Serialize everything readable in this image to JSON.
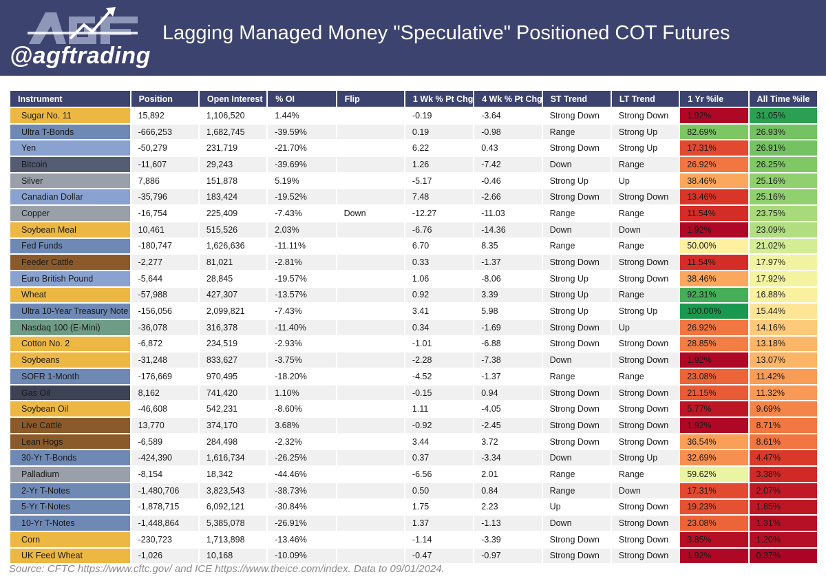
{
  "header": {
    "title": "Lagging Managed Money \"Speculative\" Positioned COT Futures",
    "handle": "@agftrading",
    "logo_letters": "AGF"
  },
  "source": "Source: CFTC https://www.cftc.gov/ and ICE https://www.theice.com/index.  Data to 09/01/2024.",
  "colors": {
    "header_bg": "#3d436f",
    "softs": "#ecb843",
    "rates": "#6f89b5",
    "fx": "#8aa2cf",
    "crypto": "#545d73",
    "metals": "#9aa0a9",
    "grains": "#ecb843",
    "livestock": "#8b5a2b",
    "equity": "#6f9c87",
    "energy": "#3e4255"
  },
  "chart_data": {
    "type": "table",
    "columns": [
      "Instrument",
      "Position",
      "Open Interest",
      "% OI",
      "Flip",
      "1 Wk % Pt Chg",
      "4 Wk % Pt Chg",
      "ST Trend",
      "LT Trend",
      "1 Yr %ile",
      "All Time %ile"
    ],
    "rows": [
      {
        "instrument": "Sugar No. 11",
        "color": "#ecb843",
        "position": "15,892",
        "open_interest": "1,106,520",
        "pct_oi": "1.44%",
        "flip": "",
        "wk1": "-0.19",
        "wk4": "-3.64",
        "st": "Strong Down",
        "lt": "Strong Down",
        "yr1": "1.92%",
        "alltime": "31.05%",
        "yr1_value": 1.92,
        "alltime_value": 31.05
      },
      {
        "instrument": "Ultra T-Bonds",
        "color": "#6f89b5",
        "position": "-666,253",
        "open_interest": "1,682,745",
        "pct_oi": "-39.59%",
        "flip": "",
        "wk1": "0.19",
        "wk4": "-0.98",
        "st": "Range",
        "lt": "Strong Up",
        "yr1": "82.69%",
        "alltime": "26.93%",
        "yr1_value": 82.69,
        "alltime_value": 26.93
      },
      {
        "instrument": "Yen",
        "color": "#8aa2cf",
        "position": "-50,279",
        "open_interest": "231,719",
        "pct_oi": "-21.70%",
        "flip": "",
        "wk1": "6.22",
        "wk4": "0.43",
        "st": "Strong Down",
        "lt": "Strong Up",
        "yr1": "17.31%",
        "alltime": "26.91%",
        "yr1_value": 17.31,
        "alltime_value": 26.91
      },
      {
        "instrument": "Bitcoin",
        "color": "#545d73",
        "position": "-11,607",
        "open_interest": "29,243",
        "pct_oi": "-39.69%",
        "flip": "",
        "wk1": "1.26",
        "wk4": "-7.42",
        "st": "Down",
        "lt": "Range",
        "yr1": "26.92%",
        "alltime": "26.25%",
        "yr1_value": 26.92,
        "alltime_value": 26.25
      },
      {
        "instrument": "Silver",
        "color": "#9aa0a9",
        "position": "7,886",
        "open_interest": "151,878",
        "pct_oi": "5.19%",
        "flip": "",
        "wk1": "-5.17",
        "wk4": "-0.46",
        "st": "Strong Up",
        "lt": "Up",
        "yr1": "38.46%",
        "alltime": "25.16%",
        "yr1_value": 38.46,
        "alltime_value": 25.16
      },
      {
        "instrument": "Canadian Dollar",
        "color": "#8aa2cf",
        "position": "-35,796",
        "open_interest": "183,424",
        "pct_oi": "-19.52%",
        "flip": "",
        "wk1": "7.48",
        "wk4": "-2.66",
        "st": "Strong Down",
        "lt": "Strong Down",
        "yr1": "13.46%",
        "alltime": "25.16%",
        "yr1_value": 13.46,
        "alltime_value": 25.16
      },
      {
        "instrument": "Copper",
        "color": "#9aa0a9",
        "position": "-16,754",
        "open_interest": "225,409",
        "pct_oi": "-7.43%",
        "flip": "Down",
        "wk1": "-12.27",
        "wk4": "-11.03",
        "st": "Range",
        "lt": "Range",
        "yr1": "11.54%",
        "alltime": "23.75%",
        "yr1_value": 11.54,
        "alltime_value": 23.75
      },
      {
        "instrument": "Soybean Meal",
        "color": "#ecb843",
        "position": "10,461",
        "open_interest": "515,526",
        "pct_oi": "2.03%",
        "flip": "",
        "wk1": "-6.76",
        "wk4": "-14.36",
        "st": "Down",
        "lt": "Down",
        "yr1": "1.92%",
        "alltime": "23.09%",
        "yr1_value": 1.92,
        "alltime_value": 23.09
      },
      {
        "instrument": "Fed Funds",
        "color": "#6f89b5",
        "position": "-180,747",
        "open_interest": "1,626,636",
        "pct_oi": "-11.11%",
        "flip": "",
        "wk1": "6.70",
        "wk4": "8.35",
        "st": "Range",
        "lt": "Range",
        "yr1": "50.00%",
        "alltime": "21.02%",
        "yr1_value": 50.0,
        "alltime_value": 21.02
      },
      {
        "instrument": "Feeder Cattle",
        "color": "#8b5a2b",
        "position": "-2,277",
        "open_interest": "81,021",
        "pct_oi": "-2.81%",
        "flip": "",
        "wk1": "0.33",
        "wk4": "-1.37",
        "st": "Strong Down",
        "lt": "Strong Down",
        "yr1": "11.54%",
        "alltime": "17.97%",
        "yr1_value": 11.54,
        "alltime_value": 17.97
      },
      {
        "instrument": "Euro British Pound",
        "color": "#8aa2cf",
        "position": "-5,644",
        "open_interest": "28,845",
        "pct_oi": "-19.57%",
        "flip": "",
        "wk1": "1.06",
        "wk4": "-8.06",
        "st": "Strong Up",
        "lt": "Strong Down",
        "yr1": "38.46%",
        "alltime": "17.92%",
        "yr1_value": 38.46,
        "alltime_value": 17.92
      },
      {
        "instrument": "Wheat",
        "color": "#ecb843",
        "position": "-57,988",
        "open_interest": "427,307",
        "pct_oi": "-13.57%",
        "flip": "",
        "wk1": "0.92",
        "wk4": "3.39",
        "st": "Strong Up",
        "lt": "Range",
        "yr1": "92.31%",
        "alltime": "16.88%",
        "yr1_value": 92.31,
        "alltime_value": 16.88
      },
      {
        "instrument": "Ultra 10-Year Treasury Note",
        "color": "#6f89b5",
        "position": "-156,056",
        "open_interest": "2,099,821",
        "pct_oi": "-7.43%",
        "flip": "",
        "wk1": "3.41",
        "wk4": "5.98",
        "st": "Strong Up",
        "lt": "Strong Up",
        "yr1": "100.00%",
        "alltime": "15.44%",
        "yr1_value": 100.0,
        "alltime_value": 15.44
      },
      {
        "instrument": "Nasdaq 100 (E-Mini)",
        "color": "#6f9c87",
        "position": "-36,078",
        "open_interest": "316,378",
        "pct_oi": "-11.40%",
        "flip": "",
        "wk1": "0.34",
        "wk4": "-1.69",
        "st": "Strong Down",
        "lt": "Up",
        "yr1": "26.92%",
        "alltime": "14.16%",
        "yr1_value": 26.92,
        "alltime_value": 14.16
      },
      {
        "instrument": "Cotton No. 2",
        "color": "#ecb843",
        "position": "-6,872",
        "open_interest": "234,519",
        "pct_oi": "-2.93%",
        "flip": "",
        "wk1": "-1.01",
        "wk4": "-6.88",
        "st": "Strong Down",
        "lt": "Strong Down",
        "yr1": "28.85%",
        "alltime": "13.18%",
        "yr1_value": 28.85,
        "alltime_value": 13.18
      },
      {
        "instrument": "Soybeans",
        "color": "#ecb843",
        "position": "-31,248",
        "open_interest": "833,627",
        "pct_oi": "-3.75%",
        "flip": "",
        "wk1": "-2.28",
        "wk4": "-7.38",
        "st": "Down",
        "lt": "Strong Down",
        "yr1": "1.92%",
        "alltime": "13.07%",
        "yr1_value": 1.92,
        "alltime_value": 13.07
      },
      {
        "instrument": "SOFR 1-Month",
        "color": "#6f89b5",
        "position": "-176,669",
        "open_interest": "970,495",
        "pct_oi": "-18.20%",
        "flip": "",
        "wk1": "-4.52",
        "wk4": "-1.37",
        "st": "Range",
        "lt": "Range",
        "yr1": "23.08%",
        "alltime": "11.42%",
        "yr1_value": 23.08,
        "alltime_value": 11.42
      },
      {
        "instrument": "Gas Oil",
        "color": "#3e4255",
        "position": "8,162",
        "open_interest": "741,420",
        "pct_oi": "1.10%",
        "flip": "",
        "wk1": "-0.15",
        "wk4": "0.94",
        "st": "Strong Down",
        "lt": "Strong Down",
        "yr1": "21.15%",
        "alltime": "11.32%",
        "yr1_value": 21.15,
        "alltime_value": 11.32
      },
      {
        "instrument": "Soybean Oil",
        "color": "#ecb843",
        "position": "-46,608",
        "open_interest": "542,231",
        "pct_oi": "-8.60%",
        "flip": "",
        "wk1": "1.11",
        "wk4": "-4.05",
        "st": "Strong Down",
        "lt": "Strong Down",
        "yr1": "5.77%",
        "alltime": "9.69%",
        "yr1_value": 5.77,
        "alltime_value": 9.69
      },
      {
        "instrument": "Live Cattle",
        "color": "#8b5a2b",
        "position": "13,770",
        "open_interest": "374,170",
        "pct_oi": "3.68%",
        "flip": "",
        "wk1": "-0.92",
        "wk4": "-2.45",
        "st": "Strong Down",
        "lt": "Strong Down",
        "yr1": "1.92%",
        "alltime": "8.71%",
        "yr1_value": 1.92,
        "alltime_value": 8.71
      },
      {
        "instrument": "Lean Hogs",
        "color": "#8b5a2b",
        "position": "-6,589",
        "open_interest": "284,498",
        "pct_oi": "-2.32%",
        "flip": "",
        "wk1": "3.44",
        "wk4": "3.72",
        "st": "Strong Down",
        "lt": "Strong Down",
        "yr1": "36.54%",
        "alltime": "8.61%",
        "yr1_value": 36.54,
        "alltime_value": 8.61
      },
      {
        "instrument": "30-Yr T-Bonds",
        "color": "#6f89b5",
        "position": "-424,390",
        "open_interest": "1,616,734",
        "pct_oi": "-26.25%",
        "flip": "",
        "wk1": "0.37",
        "wk4": "-3.34",
        "st": "Down",
        "lt": "Strong Up",
        "yr1": "32.69%",
        "alltime": "4.47%",
        "yr1_value": 32.69,
        "alltime_value": 4.47
      },
      {
        "instrument": "Palladium",
        "color": "#9aa0a9",
        "position": "-8,154",
        "open_interest": "18,342",
        "pct_oi": "-44.46%",
        "flip": "",
        "wk1": "-6.56",
        "wk4": "2.01",
        "st": "Range",
        "lt": "Range",
        "yr1": "59.62%",
        "alltime": "3.38%",
        "yr1_value": 59.62,
        "alltime_value": 3.38
      },
      {
        "instrument": "2-Yr T-Notes",
        "color": "#6f89b5",
        "position": "-1,480,706",
        "open_interest": "3,823,543",
        "pct_oi": "-38.73%",
        "flip": "",
        "wk1": "0.50",
        "wk4": "0.84",
        "st": "Range",
        "lt": "Down",
        "yr1": "17.31%",
        "alltime": "2.07%",
        "yr1_value": 17.31,
        "alltime_value": 2.07
      },
      {
        "instrument": "5-Yr T-Notes",
        "color": "#6f89b5",
        "position": "-1,878,715",
        "open_interest": "6,092,121",
        "pct_oi": "-30.84%",
        "flip": "",
        "wk1": "1.75",
        "wk4": "2.23",
        "st": "Up",
        "lt": "Strong Down",
        "yr1": "19.23%",
        "alltime": "1.85%",
        "yr1_value": 19.23,
        "alltime_value": 1.85
      },
      {
        "instrument": "10-Yr T-Notes",
        "color": "#6f89b5",
        "position": "-1,448,864",
        "open_interest": "5,385,078",
        "pct_oi": "-26.91%",
        "flip": "",
        "wk1": "1.37",
        "wk4": "-1.13",
        "st": "Down",
        "lt": "Strong Down",
        "yr1": "23.08%",
        "alltime": "1.31%",
        "yr1_value": 23.08,
        "alltime_value": 1.31
      },
      {
        "instrument": "Corn",
        "color": "#ecb843",
        "position": "-230,723",
        "open_interest": "1,713,898",
        "pct_oi": "-13.46%",
        "flip": "",
        "wk1": "-1.14",
        "wk4": "-3.39",
        "st": "Strong Down",
        "lt": "Strong Down",
        "yr1": "3.85%",
        "alltime": "1.20%",
        "yr1_value": 3.85,
        "alltime_value": 1.2
      },
      {
        "instrument": "UK Feed Wheat",
        "color": "#ecb843",
        "position": "-1,026",
        "open_interest": "10,168",
        "pct_oi": "-10.09%",
        "flip": "",
        "wk1": "-0.47",
        "wk4": "-0.97",
        "st": "Strong Down",
        "lt": "Strong Down",
        "yr1": "1.92%",
        "alltime": "0.37%",
        "yr1_value": 1.92,
        "alltime_value": 0.37
      }
    ]
  }
}
